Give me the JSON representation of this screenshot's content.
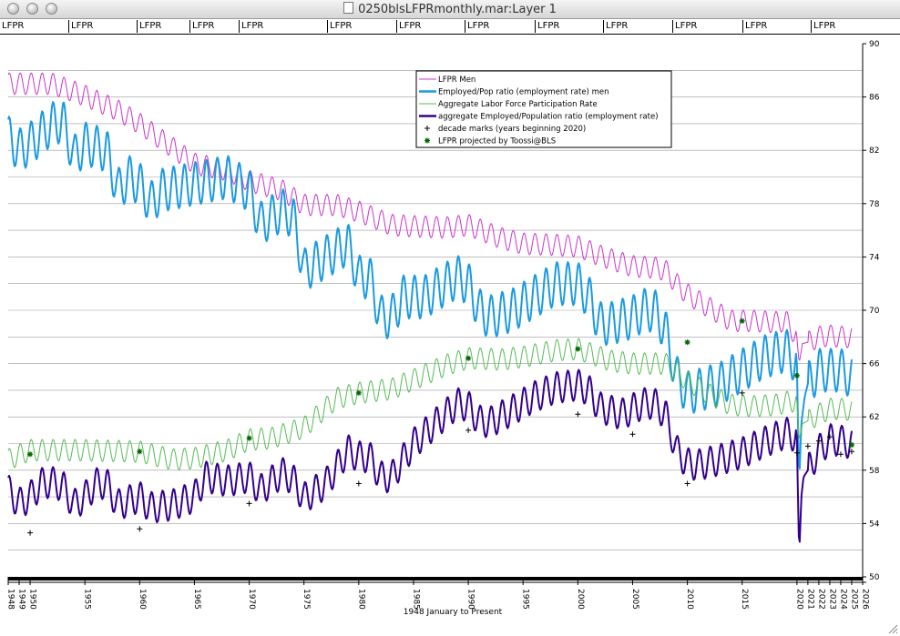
{
  "window": {
    "title": "0250blsLFPRmonthly.mar:Layer 1"
  },
  "toolbar": {
    "labels": [
      "LFPR",
      "LFPR",
      "LFPR",
      "LFPR",
      "LFPR",
      "LFPR",
      "LFPR",
      "LFPR",
      "LFPR",
      "LFPR",
      "LFPR",
      "LFPR",
      "LFPR"
    ]
  },
  "chart_data": {
    "type": "line",
    "xlabel": "1948 January to Present",
    "ylim": [
      50,
      90
    ],
    "xlim": [
      1948,
      2026
    ],
    "y_ticks": [
      50,
      54,
      58,
      62,
      66,
      70,
      74,
      78,
      82,
      86,
      90
    ],
    "x_ticks": [
      "1948",
      "1949",
      "1950",
      "1955",
      "1960",
      "1965",
      "1970",
      "1975",
      "1980",
      "1985",
      "1990",
      "1995",
      "2000",
      "2005",
      "2010",
      "2015",
      "2020",
      "2021",
      "2022",
      "2023",
      "2024",
      "2025",
      "2026"
    ],
    "x_tick_values": [
      1948,
      1949,
      1950,
      1955,
      1960,
      1965,
      1970,
      1975,
      1980,
      1985,
      1990,
      1995,
      2000,
      2005,
      2010,
      2015,
      2020,
      2021,
      2022,
      2023,
      2024,
      2025,
      2026
    ],
    "grid": true,
    "legend_position": "top-right",
    "colors": {
      "men_lfpr": "#cc33cc",
      "men_epop": "#1a9ae0",
      "agg_lfpr": "#55bb55",
      "agg_epop": "#33008c",
      "marks": "#000000",
      "projected": "#006600"
    },
    "series": [
      {
        "name": "LFPR Men",
        "key": "men_lfpr",
        "amp": 0.9,
        "x": [
          1948,
          1952,
          1955,
          1958,
          1960,
          1962,
          1965,
          1968,
          1970,
          1973,
          1975,
          1978,
          1980,
          1983,
          1985,
          1988,
          1990,
          1993,
          1995,
          1998,
          2000,
          2002,
          2005,
          2007,
          2008,
          2009,
          2010,
          2012,
          2014,
          2016,
          2018,
          2019,
          2020,
          2020.2,
          2020.5,
          2021,
          2022,
          2023,
          2024,
          2025
        ],
        "y": [
          87.0,
          87.0,
          86.1,
          85.0,
          84.0,
          82.8,
          81.0,
          80.5,
          79.7,
          79.0,
          77.9,
          77.9,
          77.4,
          76.4,
          76.3,
          76.2,
          76.4,
          75.4,
          75.0,
          74.9,
          74.8,
          74.1,
          73.3,
          73.2,
          73.0,
          72.0,
          71.2,
          70.2,
          69.2,
          69.2,
          69.1,
          69.2,
          68.0,
          66.0,
          67.5,
          67.6,
          68.0,
          68.1,
          68.0,
          68.0
        ]
      },
      {
        "name": "Employed/Pop ratio (employment rate) men",
        "key": "men_epop",
        "amp": 1.8,
        "x": [
          1948,
          1949,
          1950,
          1952,
          1953,
          1954,
          1955,
          1957,
          1958,
          1959,
          1960,
          1961,
          1962,
          1965,
          1968,
          1970,
          1971,
          1973,
          1974,
          1975,
          1976,
          1978,
          1979,
          1980,
          1981,
          1982,
          1983,
          1984,
          1986,
          1988,
          1989,
          1990,
          1991,
          1992,
          1994,
          1996,
          1998,
          2000,
          2001,
          2002,
          2003,
          2005,
          2006,
          2007,
          2008,
          2009,
          2010,
          2011,
          2013,
          2015,
          2017,
          2019,
          2020,
          2020.2,
          2020.4,
          2020.7,
          2021,
          2022,
          2023,
          2024,
          2025
        ],
        "y": [
          83.0,
          82.0,
          82.5,
          84.0,
          84.2,
          81.5,
          82.5,
          82.0,
          79.0,
          80.0,
          79.5,
          78.0,
          79.0,
          79.5,
          80.0,
          79.0,
          76.5,
          77.5,
          77.0,
          73.0,
          73.5,
          74.5,
          75.0,
          72.5,
          72.5,
          69.5,
          69.5,
          71.0,
          71.0,
          72.0,
          72.5,
          72.0,
          70.0,
          69.5,
          70.0,
          71.0,
          72.0,
          72.0,
          71.0,
          69.0,
          69.0,
          69.5,
          70.0,
          70.0,
          68.5,
          65.0,
          63.8,
          64.0,
          64.5,
          65.5,
          66.5,
          67.0,
          66.0,
          57.0,
          61.5,
          63.5,
          64.5,
          65.5,
          65.5,
          65.5,
          65.0
        ]
      },
      {
        "name": "Aggregate Labor Force Participation Rate",
        "key": "agg_lfpr",
        "amp": 0.9,
        "x": [
          1948,
          1950,
          1955,
          1960,
          1963,
          1965,
          1968,
          1970,
          1972,
          1975,
          1978,
          1980,
          1983,
          1985,
          1988,
          1990,
          1993,
          1995,
          1998,
          2000,
          2003,
          2005,
          2007,
          2008,
          2009,
          2010,
          2012,
          2014,
          2016,
          2018,
          2019,
          2020,
          2020.2,
          2020.5,
          2021,
          2022,
          2023,
          2024,
          2025
        ],
        "y": [
          58.8,
          59.5,
          59.5,
          59.4,
          58.8,
          58.9,
          59.5,
          60.3,
          60.4,
          61.2,
          63.4,
          63.8,
          64.1,
          64.8,
          65.9,
          66.4,
          66.3,
          66.5,
          67.0,
          67.1,
          66.2,
          66.0,
          66.0,
          66.0,
          65.4,
          64.7,
          63.7,
          62.9,
          62.8,
          62.9,
          63.1,
          63.2,
          60.2,
          61.5,
          61.7,
          62.2,
          62.6,
          62.6,
          62.5
        ]
      },
      {
        "name": "aggregate Employed/Population ratio (employment rate)",
        "key": "agg_epop",
        "amp": 1.3,
        "x": [
          1948,
          1949,
          1950,
          1951,
          1952,
          1953,
          1954,
          1955,
          1956,
          1957,
          1958,
          1960,
          1961,
          1963,
          1965,
          1966,
          1968,
          1970,
          1971,
          1973,
          1974,
          1975,
          1977,
          1979,
          1980,
          1981,
          1982,
          1983,
          1985,
          1987,
          1989,
          1990,
          1991,
          1992,
          1994,
          1996,
          1998,
          2000,
          2001,
          2002,
          2004,
          2006,
          2007,
          2008,
          2009,
          2010,
          2011,
          2013,
          2015,
          2017,
          2019,
          2020,
          2020.2,
          2020.4,
          2020.6,
          2021,
          2022,
          2023,
          2024,
          2025
        ],
        "y": [
          56.5,
          55.5,
          56.0,
          57.0,
          57.1,
          56.8,
          55.4,
          56.0,
          57.0,
          57.0,
          55.4,
          56.0,
          55.2,
          55.4,
          56.0,
          57.5,
          57.2,
          57.5,
          56.5,
          57.8,
          57.3,
          55.9,
          57.0,
          59.5,
          59.0,
          59.0,
          57.5,
          57.5,
          60.0,
          61.5,
          63.0,
          62.8,
          61.7,
          61.6,
          62.5,
          63.5,
          64.2,
          64.4,
          64.0,
          62.7,
          62.2,
          63.0,
          63.0,
          62.2,
          59.5,
          58.5,
          58.4,
          58.8,
          59.3,
          60.1,
          60.8,
          60.5,
          51.5,
          56.0,
          57.5,
          58.0,
          59.5,
          60.3,
          60.2,
          60.0
        ]
      },
      {
        "name": "decade marks (years beginning 2020)",
        "key": "marks",
        "marker": "+",
        "x": [
          1950,
          1960,
          1970,
          1980,
          1990,
          2000,
          2005,
          2010,
          2015,
          2020,
          2021,
          2022,
          2023,
          2024,
          2025
        ],
        "y": [
          53.3,
          53.6,
          55.5,
          57.0,
          61.0,
          62.2,
          60.7,
          57.0,
          63.8,
          59.3,
          59.8,
          60.2,
          60.5,
          59.2,
          59.4
        ]
      },
      {
        "name": "LFPR projected by Toossi@BLS",
        "key": "projected",
        "marker": "*",
        "x": [
          1950,
          1960,
          1970,
          1980,
          1990,
          2000,
          2010,
          2015,
          2020,
          2025
        ],
        "y": [
          59.2,
          59.4,
          60.4,
          63.8,
          66.4,
          67.1,
          67.6,
          69.2,
          65.1,
          59.9
        ]
      }
    ]
  }
}
